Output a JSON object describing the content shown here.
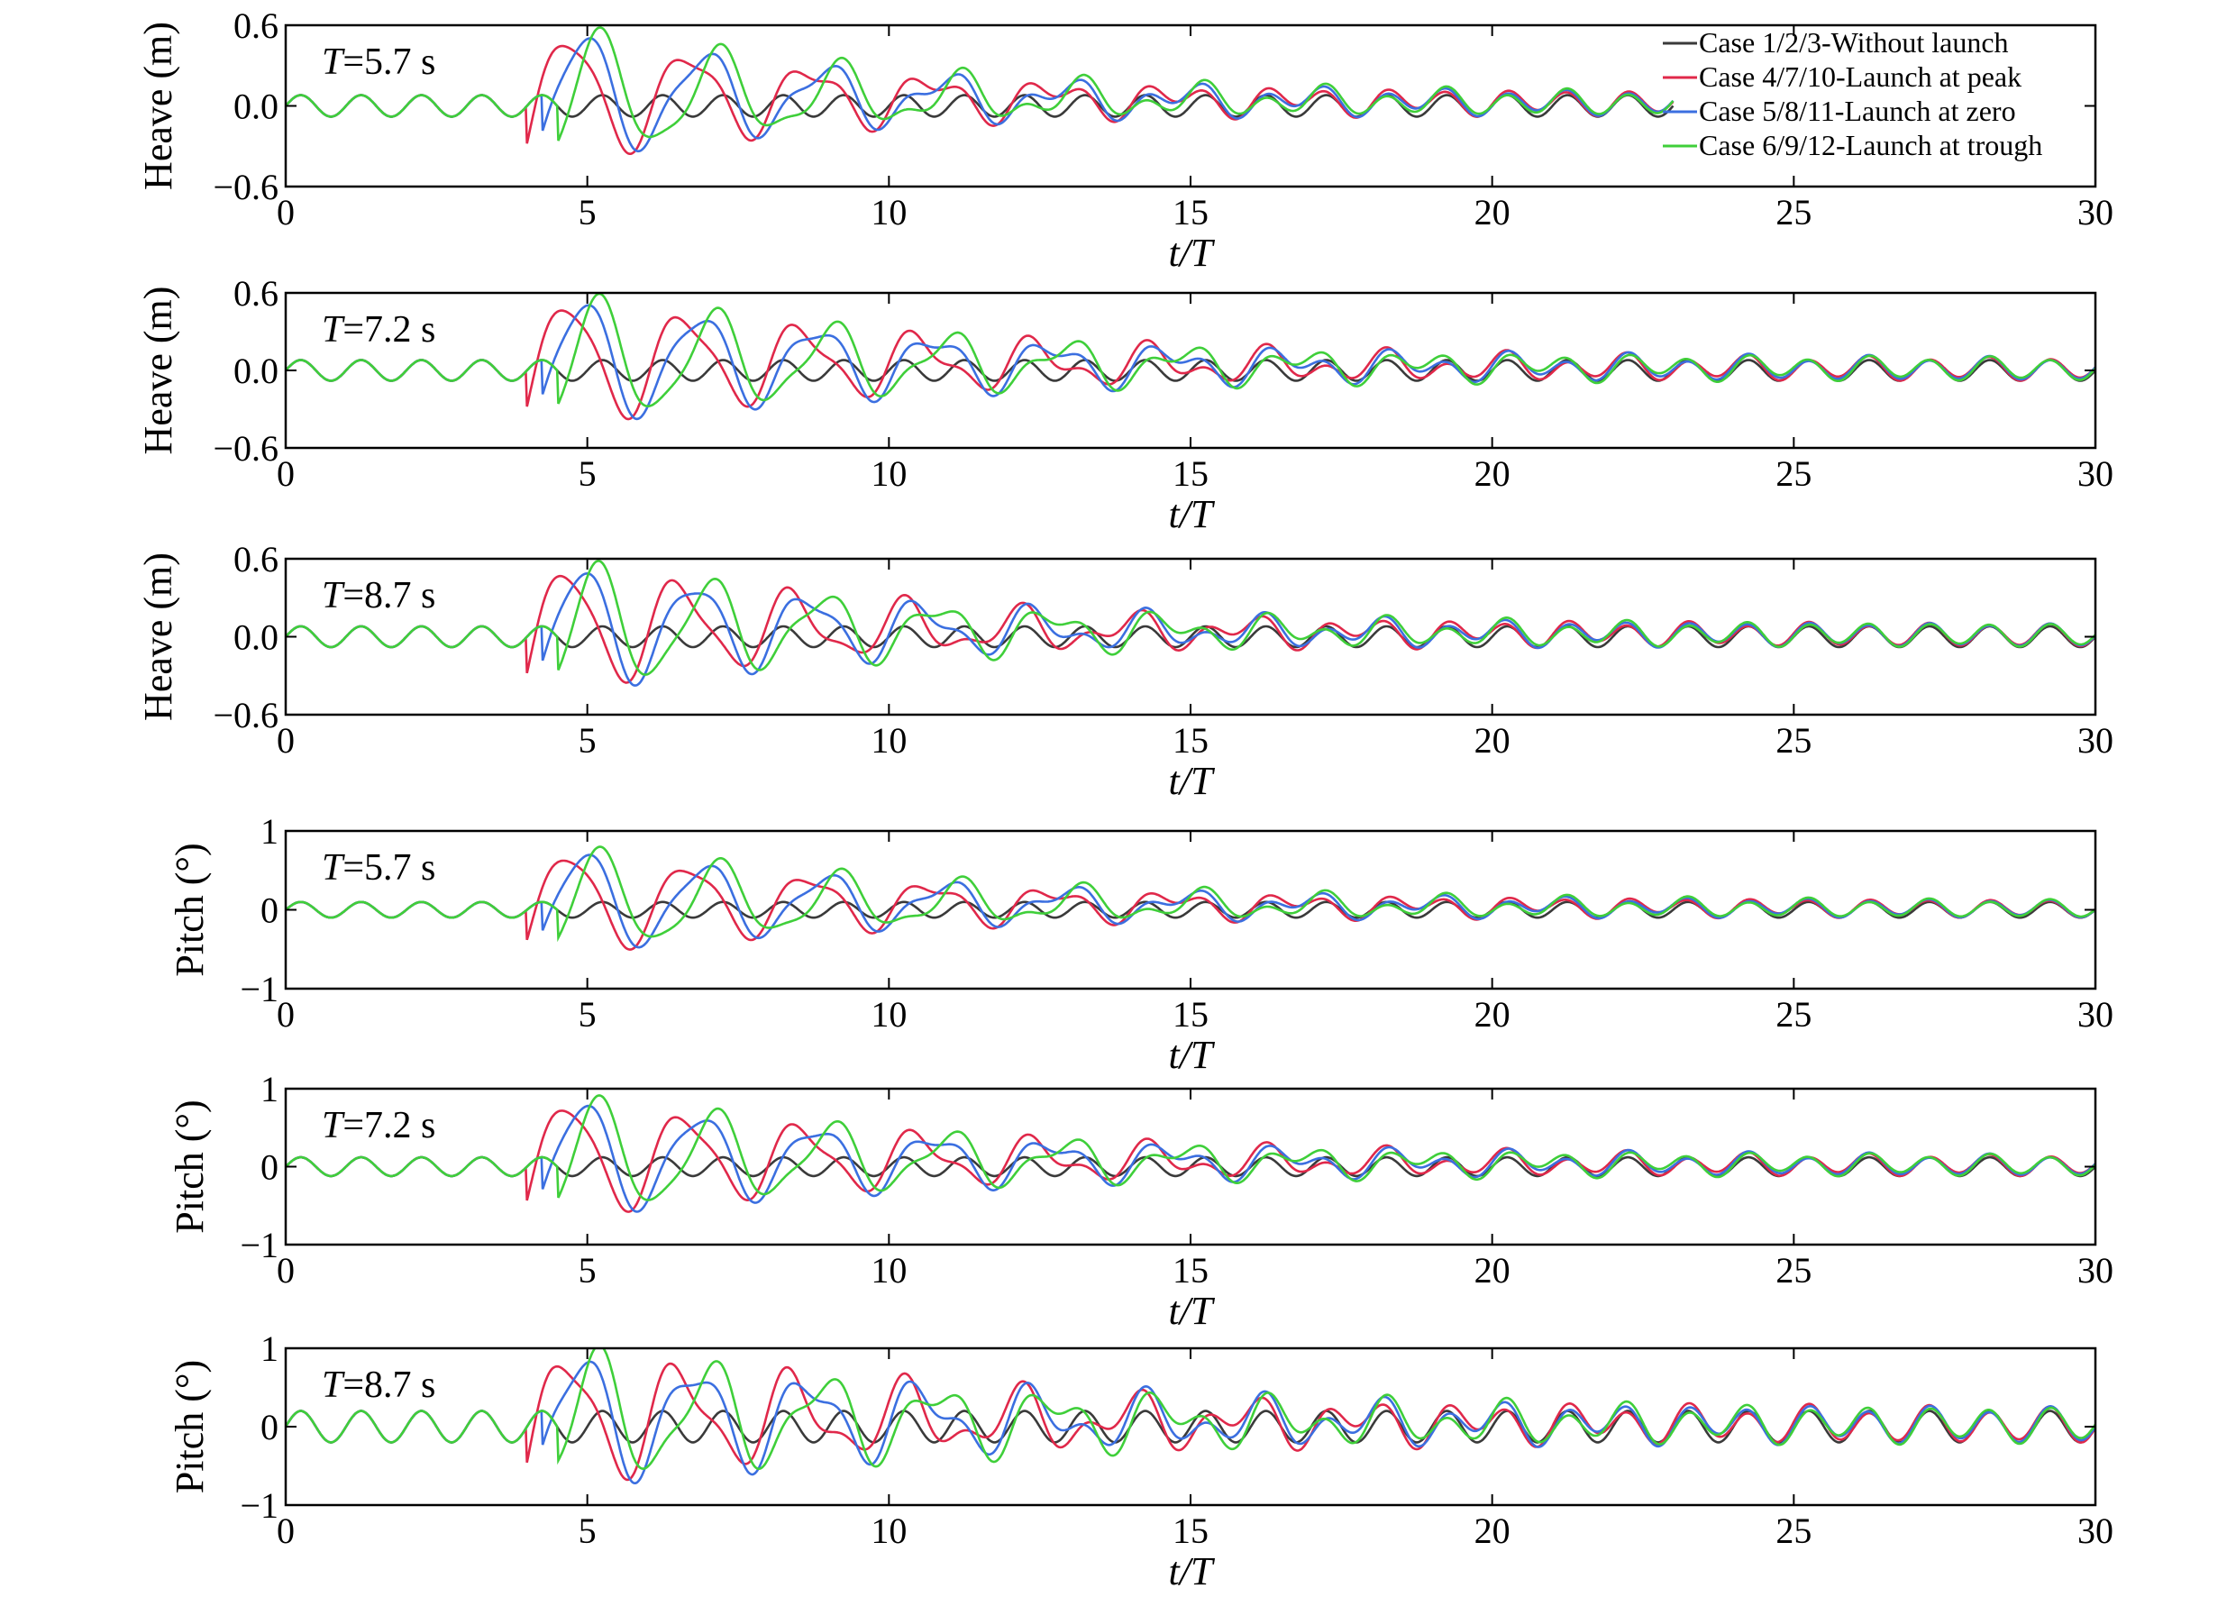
{
  "chart_data": [
    {
      "type": "line",
      "ylabel": "Heave (m)",
      "xlabel": "t/T",
      "annotation_var": "T",
      "annotation_val": "=5.7 s",
      "xlim": [
        0,
        30
      ],
      "ylim": [
        -0.6,
        0.6
      ],
      "xticks": [
        0,
        5,
        10,
        15,
        20,
        25,
        30
      ],
      "yticks": [
        "0.6",
        "0.0",
        "−0.6"
      ],
      "x_end": 23,
      "launch_x": 4.0,
      "base_amp": 0.08,
      "peak": 0.55,
      "decay": 0.82,
      "lead_scale": 1.0,
      "legend": true,
      "grid": false
    },
    {
      "type": "line",
      "ylabel": "Heave (m)",
      "xlabel": "t/T",
      "annotation_var": "T",
      "annotation_val": "=7.2 s",
      "xlim": [
        0,
        30
      ],
      "ylim": [
        -0.6,
        0.6
      ],
      "xticks": [
        0,
        5,
        10,
        15,
        20,
        25,
        30
      ],
      "yticks": [
        "0.6",
        "0.0",
        "−0.6"
      ],
      "x_end": 30,
      "launch_x": 4.0,
      "base_amp": 0.08,
      "peak": 0.55,
      "decay": 0.86,
      "lead_scale": 0.8,
      "legend": false,
      "grid": false
    },
    {
      "type": "line",
      "ylabel": "Heave (m)",
      "xlabel": "t/T",
      "annotation_var": "T",
      "annotation_val": "=8.7 s",
      "xlim": [
        0,
        30
      ],
      "ylim": [
        -0.6,
        0.6
      ],
      "xticks": [
        0,
        5,
        10,
        15,
        20,
        25,
        30
      ],
      "yticks": [
        "0.6",
        "0.0",
        "−0.6"
      ],
      "x_end": 30,
      "launch_x": 4.0,
      "base_amp": 0.08,
      "peak": 0.55,
      "decay": 0.84,
      "lead_scale": 0.6,
      "legend": false,
      "grid": false
    },
    {
      "type": "line",
      "ylabel": "Pitch (°)",
      "xlabel": "t/T",
      "annotation_var": "T",
      "annotation_val": "=5.7 s",
      "xlim": [
        0,
        30
      ],
      "ylim": [
        -1,
        1
      ],
      "xticks": [
        0,
        5,
        10,
        15,
        20,
        25,
        30
      ],
      "yticks": [
        "1",
        "0",
        "−1"
      ],
      "x_end": 30,
      "launch_x": 4.0,
      "base_amp": 0.1,
      "peak": 0.75,
      "decay": 0.85,
      "lead_scale": 1.0,
      "legend": false,
      "grid": false
    },
    {
      "type": "line",
      "ylabel": "Pitch (°)",
      "xlabel": "t/T",
      "annotation_var": "T",
      "annotation_val": "=7.2 s",
      "xlim": [
        0,
        30
      ],
      "ylim": [
        -1,
        1
      ],
      "xticks": [
        0,
        5,
        10,
        15,
        20,
        25,
        30
      ],
      "yticks": [
        "1",
        "0",
        "−1"
      ],
      "x_end": 30,
      "launch_x": 4.0,
      "base_amp": 0.12,
      "peak": 0.85,
      "decay": 0.86,
      "lead_scale": 0.8,
      "legend": false,
      "grid": false
    },
    {
      "type": "line",
      "ylabel": "Pitch (°)",
      "xlabel": "t/T",
      "annotation_var": "T",
      "annotation_val": "=8.7 s",
      "xlim": [
        0,
        30
      ],
      "ylim": [
        -1,
        1
      ],
      "xticks": [
        0,
        5,
        10,
        15,
        20,
        25,
        30
      ],
      "yticks": [
        "1",
        "0",
        "−1"
      ],
      "x_end": 30,
      "launch_x": 4.0,
      "base_amp": 0.2,
      "peak": 0.9,
      "decay": 0.88,
      "lead_scale": 0.6,
      "legend": false,
      "grid": false
    }
  ],
  "legend": {
    "placement": "top-right of first panel",
    "entries": [
      {
        "label": "Case 1/2/3-Without launch",
        "color": "#3a3a3a"
      },
      {
        "label": "Case 4/7/10-Launch at peak",
        "color": "#e0284a"
      },
      {
        "label": "Case 5/8/11-Launch at zero",
        "color": "#3b6fe0"
      },
      {
        "label": "Case 6/9/12-Launch at trough",
        "color": "#3fcf3a"
      }
    ]
  }
}
